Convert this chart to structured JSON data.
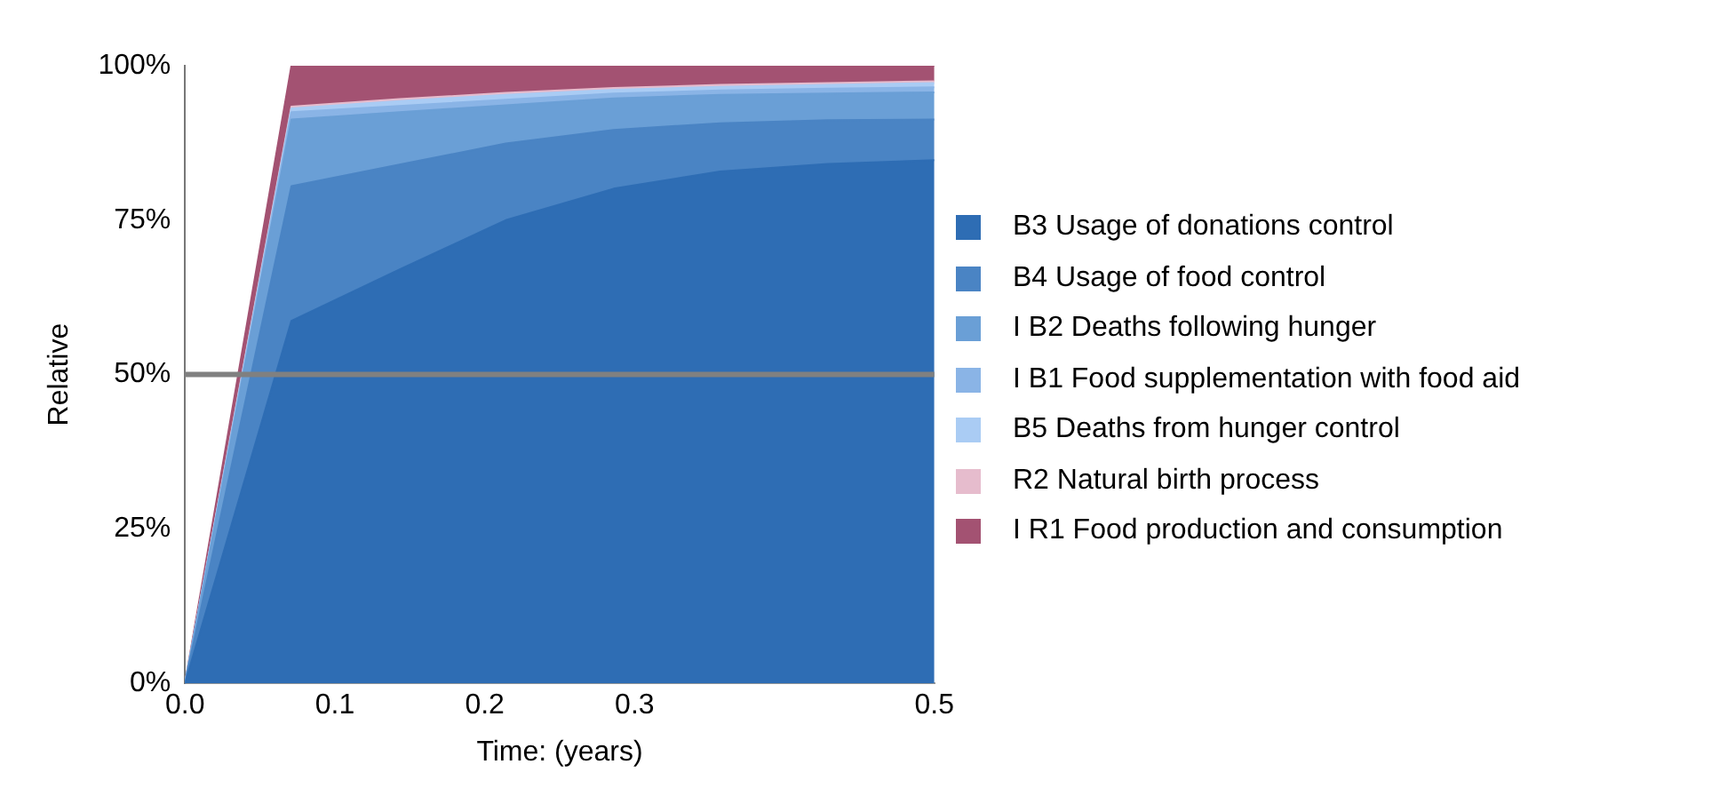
{
  "chart_data": {
    "type": "area",
    "stacked": true,
    "xlabel": "Time: (years)",
    "ylabel": "Relative",
    "x": [
      0,
      0.071,
      0.143,
      0.214,
      0.286,
      0.357,
      0.429,
      0.5
    ],
    "series": [
      {
        "name": "B3 Usage of donations control",
        "color": "#2e6db4",
        "values": [
          0,
          58.7,
          67,
          75,
          80.1,
          82.9,
          84.1,
          84.7
        ]
      },
      {
        "name": "B4 Usage of food control",
        "color": "#4a84c4",
        "values": [
          0,
          21.8,
          17,
          12.4,
          9.5,
          7.8,
          7.1,
          6.6
        ]
      },
      {
        "name": "I B2 Deaths following hunger",
        "color": "#6a9fd6",
        "values": [
          0,
          10.8,
          8.5,
          6.2,
          5.1,
          4.6,
          4.3,
          4.4
        ]
      },
      {
        "name": "I B1 Food supplementation with food aid",
        "color": "#8ab4e6",
        "values": [
          0,
          1.2,
          1,
          0.9,
          0.8,
          0.7,
          0.8,
          0.8
        ]
      },
      {
        "name": "B5 Deaths from hunger control",
        "color": "#aaccf4",
        "values": [
          0,
          0.6,
          0.8,
          0.8,
          0.6,
          0.6,
          0.6,
          0.7
        ]
      },
      {
        "name": "R2 Natural birth process",
        "color": "#e6bccd",
        "values": [
          0,
          0.3,
          0.3,
          0.3,
          0.3,
          0.3,
          0.3,
          0.3
        ]
      },
      {
        "name": "I R1 Food production and consumption",
        "color": "#a35272",
        "values": [
          0,
          6.6,
          5.4,
          4.4,
          3.6,
          3.1,
          2.8,
          2.5
        ]
      }
    ],
    "xlim": [
      0,
      0.5
    ],
    "xticks": [
      {
        "value": 0,
        "label": "0.0"
      },
      0.1,
      0.2,
      0.3,
      {
        "value": 0.5,
        "label": "0.5"
      }
    ],
    "ylim": [
      0,
      100
    ],
    "yticks": [
      {
        "value": 0,
        "label": "0%"
      },
      {
        "value": 25,
        "label": "25%"
      },
      {
        "value": 50,
        "label": "50%"
      },
      {
        "value": 75,
        "label": "75%"
      },
      {
        "value": 100,
        "label": "100%"
      }
    ],
    "ref_lines": [
      {
        "axis": "y",
        "value": 50,
        "color": "#808080"
      }
    ],
    "grid": false,
    "legend": "right",
    "marker": "none",
    "line_style": "solid"
  }
}
